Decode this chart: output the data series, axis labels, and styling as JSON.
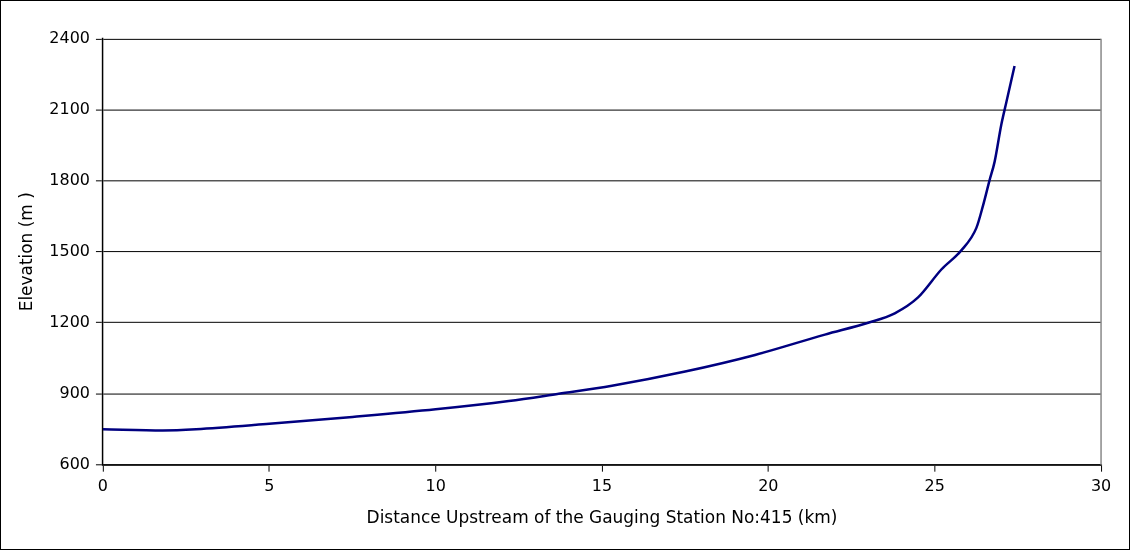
{
  "chart_data": {
    "type": "line",
    "xlabel": "Distance Upstream of the Gauging Station No:415 (km)",
    "ylabel": "Elevation (m )",
    "series": [
      {
        "color": "#000080",
        "x": [
          0,
          1.8,
          2.8,
          5,
          7.5,
          10,
          12.2,
          13.7,
          15.3,
          17.5,
          19.6,
          21.7,
          23,
          23.8,
          24.5,
          25.2,
          25.8,
          26.25,
          26.45,
          26.65,
          26.8,
          27,
          27.15,
          27.4
        ],
        "values": [
          750,
          745,
          750,
          773,
          802,
          834,
          869,
          900,
          934,
          994,
          1064,
          1150,
          1200,
          1240,
          1307,
          1425,
          1506,
          1600,
          1694,
          1803,
          1880,
          2036,
          2130,
          2285
        ]
      }
    ],
    "xlim": [
      0,
      30
    ],
    "xticks": [
      0,
      5,
      10,
      15,
      20,
      25,
      30
    ],
    "ylim": [
      600,
      2400
    ],
    "yticks": [
      600,
      900,
      1200,
      1500,
      1800,
      2100,
      2400
    ],
    "grid": "y",
    "legend": false,
    "marker": "none",
    "line_style": "solid"
  }
}
